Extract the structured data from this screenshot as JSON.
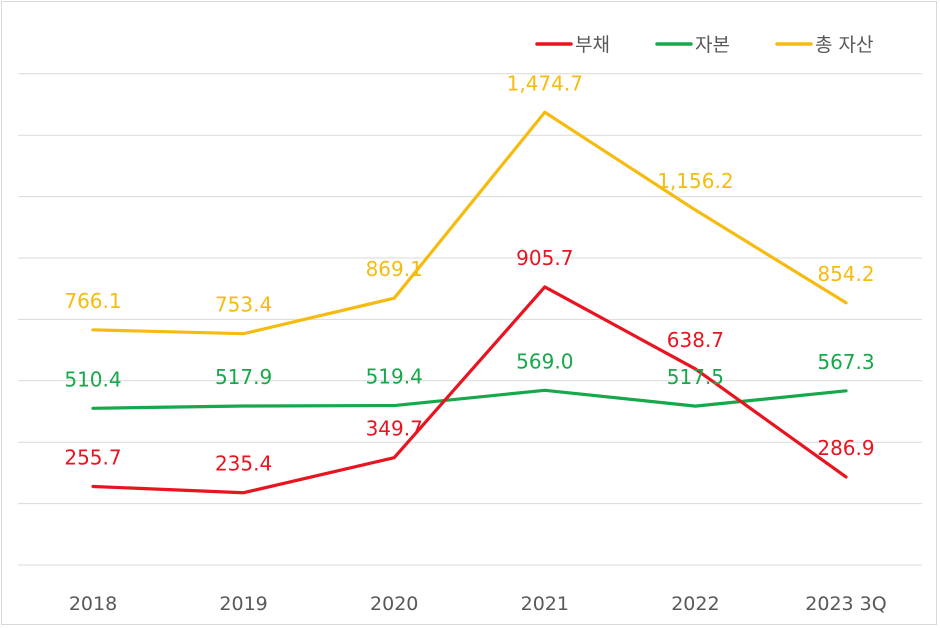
{
  "chart_data": {
    "type": "line",
    "title": "",
    "xlabel": "",
    "ylabel": "",
    "categories": [
      "2018",
      "2019",
      "2020",
      "2021",
      "2022",
      "2023 3Q"
    ],
    "ylim": [
      0,
      1600
    ],
    "grid": true,
    "legend_position": "top-right",
    "series": [
      {
        "name": "부채",
        "color": "#e8141f",
        "values": [
          255.7,
          235.4,
          349.7,
          905.7,
          638.7,
          286.9
        ],
        "labels": [
          "255.7",
          "235.4",
          "349.7",
          "905.7",
          "638.7",
          "286.9"
        ]
      },
      {
        "name": "자본",
        "color": "#16a84a",
        "values": [
          510.4,
          517.9,
          519.4,
          569.0,
          517.5,
          567.3
        ],
        "labels": [
          "510.4",
          "517.9",
          "519.4",
          "569.0",
          "517.5",
          "567.3"
        ]
      },
      {
        "name": "총 자산",
        "color": "#f6bb10",
        "values": [
          766.1,
          753.4,
          869.1,
          1474.7,
          1156.2,
          854.2
        ],
        "labels": [
          "766.1",
          "753.4",
          "869.1",
          "1,474.7",
          "1,156.2",
          "854.2"
        ]
      }
    ]
  }
}
